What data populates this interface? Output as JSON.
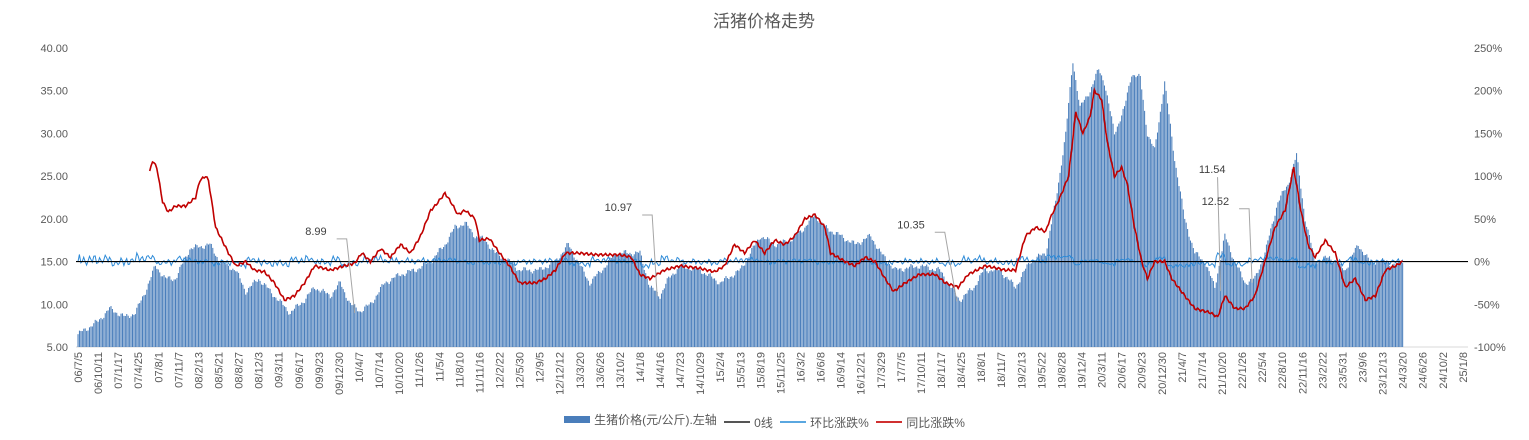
{
  "chart_data": {
    "type": "bar+line",
    "title": "活猪价格走势",
    "x_unit": "weeks since 06/7/5",
    "x_tick_labels": [
      "06/7/5",
      "06/10/11",
      "07/1/17",
      "07/4/25",
      "07/8/1",
      "07/11/7",
      "08/2/13",
      "08/5/21",
      "08/8/27",
      "08/12/3",
      "09/3/11",
      "09/6/17",
      "09/9/23",
      "09/12/30",
      "10/4/7",
      "10/7/14",
      "10/10/20",
      "11/1/26",
      "11/5/4",
      "11/8/10",
      "11/11/16",
      "12/2/22",
      "12/5/30",
      "12/9/5",
      "12/12/12",
      "13/3/20",
      "13/6/26",
      "13/10/2",
      "14/1/8",
      "14/4/16",
      "14/7/23",
      "14/10/29",
      "15/2/4",
      "15/5/13",
      "15/8/19",
      "15/11/25",
      "16/3/2",
      "16/6/8",
      "16/9/14",
      "16/12/21",
      "17/3/29",
      "17/7/5",
      "17/10/11",
      "18/1/17",
      "18/4/25",
      "18/8/1",
      "18/11/7",
      "19/2/13",
      "19/5/22",
      "19/8/28",
      "19/12/4",
      "20/3/11",
      "20/6/17",
      "20/9/23",
      "20/12/30",
      "21/4/7",
      "21/7/14",
      "21/10/20",
      "22/1/26",
      "22/5/4",
      "22/8/10",
      "22/11/16",
      "23/2/22",
      "23/5/31",
      "23/9/6",
      "23/12/13",
      "24/3/20",
      "24/6/26",
      "24/10/2",
      "25/1/8"
    ],
    "x_tick_step_weeks": 14,
    "y_left": {
      "min": 5,
      "max": 40,
      "step": 5,
      "format": "0.00"
    },
    "y_right": {
      "min": -100,
      "max": 250,
      "step": 50,
      "format": "%"
    },
    "legend": [
      "生猪价格(元/公斤).左轴",
      "0线",
      "环比涨跌%",
      "同比涨跌%"
    ],
    "legend_position": "bottom",
    "colors": {
      "price": "#4a7ebb",
      "zero": "#000000",
      "mom": "#2e8bd8",
      "yoy": "#c00000"
    },
    "series": [
      {
        "name": "生猪价格(元/公斤).左轴",
        "axis": "left",
        "type": "bar",
        "keyframes": [
          [
            0,
            6.5
          ],
          [
            14,
            8
          ],
          [
            22,
            9.5
          ],
          [
            33,
            8.5
          ],
          [
            40,
            9
          ],
          [
            47,
            11.5
          ],
          [
            54,
            14.5
          ],
          [
            61,
            13
          ],
          [
            68,
            13
          ],
          [
            78,
            16.5
          ],
          [
            92,
            17
          ],
          [
            99,
            15
          ],
          [
            110,
            14
          ],
          [
            117,
            11.5
          ],
          [
            126,
            13
          ],
          [
            137,
            11
          ],
          [
            148,
            9
          ],
          [
            158,
            10.5
          ],
          [
            165,
            12
          ],
          [
            176,
            11
          ],
          [
            183,
            12.5
          ],
          [
            190,
            10
          ],
          [
            197,
            9.2
          ],
          [
            204,
            10
          ],
          [
            214,
            12.5
          ],
          [
            225,
            13.5
          ],
          [
            235,
            14
          ],
          [
            246,
            15
          ],
          [
            256,
            17
          ],
          [
            263,
            19
          ],
          [
            270,
            19.5
          ],
          [
            277,
            18
          ],
          [
            284,
            17.5
          ],
          [
            291,
            16
          ],
          [
            301,
            15
          ],
          [
            308,
            14
          ],
          [
            322,
            14
          ],
          [
            333,
            15
          ],
          [
            342,
            17
          ],
          [
            347,
            15.5
          ],
          [
            357,
            12.5
          ],
          [
            368,
            14.5
          ],
          [
            375,
            16
          ],
          [
            392,
            16
          ],
          [
            399,
            12
          ],
          [
            406,
            11
          ],
          [
            412,
            13
          ],
          [
            420,
            14.5
          ],
          [
            434,
            14
          ],
          [
            448,
            12.5
          ],
          [
            462,
            14
          ],
          [
            476,
            18
          ],
          [
            486,
            17
          ],
          [
            497,
            17.5
          ],
          [
            507,
            19
          ],
          [
            514,
            20.5
          ],
          [
            521,
            19
          ],
          [
            532,
            18
          ],
          [
            542,
            17
          ],
          [
            553,
            18
          ],
          [
            560,
            16
          ],
          [
            570,
            14
          ],
          [
            587,
            14.5
          ],
          [
            601,
            14
          ],
          [
            615,
            10.5
          ],
          [
            625,
            12
          ],
          [
            632,
            14
          ],
          [
            643,
            14
          ],
          [
            654,
            12
          ],
          [
            664,
            15
          ],
          [
            675,
            16
          ],
          [
            682,
            22
          ],
          [
            689,
            30
          ],
          [
            694,
            38.5
          ],
          [
            699,
            33
          ],
          [
            706,
            35
          ],
          [
            712,
            37.5
          ],
          [
            716,
            36
          ],
          [
            723,
            30
          ],
          [
            730,
            33
          ],
          [
            735,
            37
          ],
          [
            741,
            36.5
          ],
          [
            746,
            30
          ],
          [
            751,
            28
          ],
          [
            758,
            36
          ],
          [
            765,
            27
          ],
          [
            772,
            20
          ],
          [
            779,
            16
          ],
          [
            786,
            15
          ],
          [
            793,
            12
          ],
          [
            800,
            18
          ],
          [
            807,
            15
          ],
          [
            814,
            12.5
          ],
          [
            821,
            13
          ],
          [
            828,
            16
          ],
          [
            837,
            22
          ],
          [
            844,
            24
          ],
          [
            850,
            27.5
          ],
          [
            856,
            20
          ],
          [
            863,
            15
          ],
          [
            873,
            15.5
          ],
          [
            884,
            14
          ],
          [
            893,
            17
          ],
          [
            901,
            15
          ],
          [
            912,
            15
          ],
          [
            919,
            14.5
          ],
          [
            924,
            15
          ]
        ]
      },
      {
        "name": "0线",
        "axis": "right",
        "type": "line",
        "value": 0
      },
      {
        "name": "环比涨跌%",
        "axis": "right",
        "type": "line",
        "derived": "week-over-week % change of price"
      },
      {
        "name": "同比涨跌%",
        "axis": "right",
        "type": "line",
        "keyframes": [
          [
            50,
            105
          ],
          [
            52,
            118
          ],
          [
            55,
            110
          ],
          [
            59,
            70
          ],
          [
            63,
            58
          ],
          [
            68,
            65
          ],
          [
            75,
            65
          ],
          [
            82,
            75
          ],
          [
            85,
            95
          ],
          [
            89,
            100
          ],
          [
            91,
            95
          ],
          [
            96,
            40
          ],
          [
            99,
            30
          ],
          [
            105,
            10
          ],
          [
            110,
            -5
          ],
          [
            117,
            0
          ],
          [
            123,
            -10
          ],
          [
            130,
            -12
          ],
          [
            137,
            -25
          ],
          [
            144,
            -45
          ],
          [
            151,
            -40
          ],
          [
            158,
            -25
          ],
          [
            165,
            -5
          ],
          [
            176,
            -10
          ],
          [
            186,
            -5
          ],
          [
            193,
            -2
          ],
          [
            198,
            10
          ],
          [
            204,
            0
          ],
          [
            211,
            15
          ],
          [
            218,
            5
          ],
          [
            225,
            20
          ],
          [
            232,
            10
          ],
          [
            239,
            30
          ],
          [
            246,
            60
          ],
          [
            249,
            65
          ],
          [
            256,
            80
          ],
          [
            260,
            70
          ],
          [
            265,
            55
          ],
          [
            270,
            60
          ],
          [
            277,
            50
          ],
          [
            280,
            25
          ],
          [
            287,
            27
          ],
          [
            294,
            10
          ],
          [
            301,
            -5
          ],
          [
            308,
            -25
          ],
          [
            319,
            -25
          ],
          [
            326,
            -20
          ],
          [
            333,
            -10
          ],
          [
            340,
            10
          ],
          [
            349,
            10
          ],
          [
            361,
            8
          ],
          [
            378,
            8
          ],
          [
            386,
            5
          ],
          [
            392,
            -15
          ],
          [
            399,
            -20
          ],
          [
            409,
            -10
          ],
          [
            420,
            -5
          ],
          [
            434,
            -8
          ],
          [
            444,
            -12
          ],
          [
            451,
            -5
          ],
          [
            458,
            20
          ],
          [
            465,
            10
          ],
          [
            472,
            25
          ],
          [
            479,
            10
          ],
          [
            486,
            25
          ],
          [
            493,
            20
          ],
          [
            500,
            30
          ],
          [
            507,
            50
          ],
          [
            514,
            55
          ],
          [
            521,
            40
          ],
          [
            525,
            10
          ],
          [
            535,
            0
          ],
          [
            542,
            -5
          ],
          [
            549,
            5
          ],
          [
            556,
            0
          ],
          [
            563,
            -20
          ],
          [
            569,
            -35
          ],
          [
            577,
            -25
          ],
          [
            587,
            -15
          ],
          [
            598,
            -15
          ],
          [
            605,
            -25
          ],
          [
            614,
            -30
          ],
          [
            621,
            -15
          ],
          [
            633,
            -5
          ],
          [
            647,
            -10
          ],
          [
            654,
            -10
          ],
          [
            661,
            30
          ],
          [
            668,
            40
          ],
          [
            675,
            35
          ],
          [
            678,
            50
          ],
          [
            685,
            75
          ],
          [
            691,
            100
          ],
          [
            696,
            175
          ],
          [
            701,
            150
          ],
          [
            706,
            170
          ],
          [
            709,
            200
          ],
          [
            714,
            190
          ],
          [
            718,
            140
          ],
          [
            723,
            100
          ],
          [
            728,
            110
          ],
          [
            732,
            90
          ],
          [
            737,
            40
          ],
          [
            742,
            0
          ],
          [
            746,
            -20
          ],
          [
            751,
            0
          ],
          [
            758,
            0
          ],
          [
            763,
            -20
          ],
          [
            772,
            -40
          ],
          [
            779,
            -55
          ],
          [
            790,
            -60
          ],
          [
            795,
            -65
          ],
          [
            800,
            -40
          ],
          [
            807,
            -55
          ],
          [
            814,
            -55
          ],
          [
            821,
            -40
          ],
          [
            828,
            0
          ],
          [
            835,
            40
          ],
          [
            842,
            60
          ],
          [
            848,
            110
          ],
          [
            853,
            60
          ],
          [
            858,
            20
          ],
          [
            863,
            5
          ],
          [
            870,
            25
          ],
          [
            877,
            10
          ],
          [
            884,
            -30
          ],
          [
            891,
            -20
          ],
          [
            898,
            -45
          ],
          [
            905,
            -40
          ],
          [
            912,
            -10
          ],
          [
            919,
            -5
          ],
          [
            924,
            0
          ]
        ]
      }
    ],
    "annotations": [
      {
        "text": "8.99",
        "week": 193,
        "value": 8.99
      },
      {
        "text": "10.97",
        "week": 404,
        "value": 10.97
      },
      {
        "text": "10.35",
        "week": 613,
        "value": 10.35
      },
      {
        "text": "11.54",
        "week": 797,
        "value": 11.54
      },
      {
        "text": "12.52",
        "week": 819,
        "value": 12.52
      }
    ]
  }
}
